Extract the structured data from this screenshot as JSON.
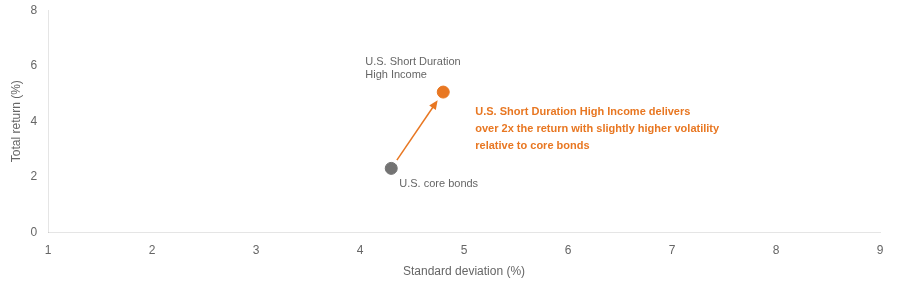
{
  "chart_data": {
    "type": "scatter",
    "x_label": "Standard deviation (%)",
    "y_label": "Total return (%)",
    "series": [
      {
        "name": "U.S. core bonds",
        "color": "#737373",
        "x": [
          4.3
        ],
        "values": [
          2.3
        ]
      },
      {
        "name": "U.S. Short Duration\nHigh Income",
        "color": "#E87722",
        "x": [
          4.8
        ],
        "values": [
          5.05
        ]
      }
    ],
    "annotation": {
      "text": "U.S. Short Duration High Income delivers\nover 2x the return with slightly higher volatility\nrelative to core bonds",
      "color": "#E87722"
    },
    "xlim": [
      1,
      9
    ],
    "ylim": [
      0,
      8
    ],
    "xticks": [
      1,
      2,
      3,
      4,
      5,
      6,
      7,
      8,
      9
    ],
    "yticks": [
      0,
      2,
      4,
      6,
      8
    ],
    "grid": false
  }
}
